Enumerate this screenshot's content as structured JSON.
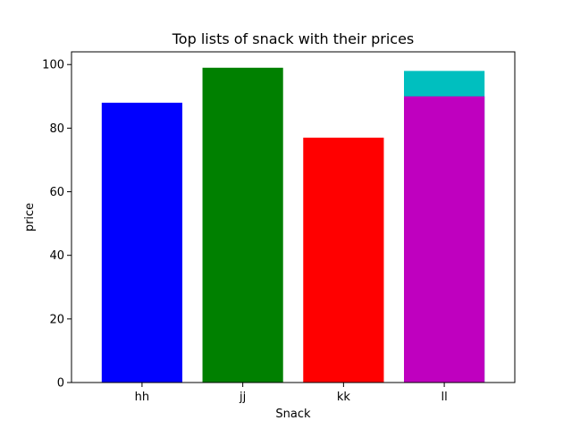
{
  "chart_data": {
    "type": "bar",
    "title": "Top lists of snack with their prices",
    "xlabel": "Snack",
    "ylabel": "price",
    "categories": [
      "hh",
      "jj",
      "kk",
      "ll"
    ],
    "ylim": [
      0,
      104
    ],
    "yticks": [
      "0",
      "20",
      "40",
      "60",
      "80",
      "100"
    ],
    "grid": false,
    "bars": [
      {
        "category": "hh",
        "value": 88,
        "color": "#0000ff"
      },
      {
        "category": "jj",
        "value": 99,
        "color": "#008000"
      },
      {
        "category": "kk",
        "value": 77,
        "color": "#ff0000"
      },
      {
        "category": "ll",
        "value": 98,
        "color": "#00bfbf"
      },
      {
        "category": "ll",
        "value": 90,
        "color": "#bf00bf"
      }
    ]
  }
}
